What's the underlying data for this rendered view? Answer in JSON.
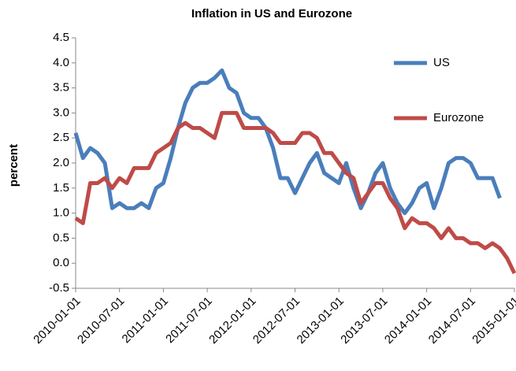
{
  "chart_data": {
    "type": "line",
    "title": "Inflation in US and Eurozone",
    "ylabel": "percent",
    "categories": [
      "2010-01-01",
      null,
      null,
      null,
      null,
      null,
      "2010-07-01",
      null,
      null,
      null,
      null,
      null,
      "2011-01-01",
      null,
      null,
      null,
      null,
      null,
      "2011-07-01",
      null,
      null,
      null,
      null,
      null,
      "2012-01-01",
      null,
      null,
      null,
      null,
      null,
      "2012-07-01",
      null,
      null,
      null,
      null,
      null,
      "2013-01-01",
      null,
      null,
      null,
      null,
      null,
      "2013-07-01",
      null,
      null,
      null,
      null,
      null,
      "2014-01-01",
      null,
      null,
      null,
      null,
      null,
      "2014-07-01",
      null,
      null,
      null,
      null,
      null,
      "2015-01-01"
    ],
    "series": [
      {
        "name": "US",
        "color": "#4a7ebb",
        "values": [
          2.6,
          2.1,
          2.3,
          2.2,
          2.0,
          1.1,
          1.2,
          1.1,
          1.1,
          1.2,
          1.1,
          1.5,
          1.6,
          2.1,
          2.7,
          3.2,
          3.5,
          3.6,
          3.6,
          3.7,
          3.85,
          3.5,
          3.4,
          3.0,
          2.9,
          2.9,
          2.7,
          2.3,
          1.7,
          1.7,
          1.4,
          1.7,
          2.0,
          2.2,
          1.8,
          1.7,
          1.6,
          2.0,
          1.5,
          1.1,
          1.4,
          1.8,
          2.0,
          1.5,
          1.2,
          1.0,
          1.2,
          1.5,
          1.6,
          1.1,
          1.5,
          2.0,
          2.1,
          2.1,
          2.0,
          1.7,
          1.7,
          1.7,
          1.3,
          null,
          null
        ]
      },
      {
        "name": "Eurozone",
        "color": "#be4b48",
        "values": [
          0.9,
          0.8,
          1.6,
          1.6,
          1.7,
          1.5,
          1.7,
          1.6,
          1.9,
          1.9,
          1.9,
          2.2,
          2.3,
          2.4,
          2.7,
          2.8,
          2.7,
          2.7,
          2.6,
          2.5,
          3.0,
          3.0,
          3.0,
          2.7,
          2.7,
          2.7,
          2.7,
          2.6,
          2.4,
          2.4,
          2.4,
          2.6,
          2.6,
          2.5,
          2.2,
          2.2,
          2.0,
          1.8,
          1.7,
          1.2,
          1.4,
          1.6,
          1.6,
          1.3,
          1.1,
          0.7,
          0.9,
          0.8,
          0.8,
          0.7,
          0.5,
          0.7,
          0.5,
          0.5,
          0.4,
          0.4,
          0.3,
          0.4,
          0.3,
          0.1,
          -0.2
        ]
      }
    ],
    "ylim": [
      -0.5,
      4.5
    ],
    "yticks": [
      -0.5,
      {
        "value": 0,
        "label": "0.0"
      },
      0.5,
      {
        "value": 1,
        "label": "1.0"
      },
      1.5,
      {
        "value": 2,
        "label": "2.0"
      },
      2.5,
      {
        "value": 3,
        "label": "3.0"
      },
      3.5,
      {
        "value": 4,
        "label": "4.0"
      },
      4.5
    ],
    "grid": false,
    "legend": "right"
  }
}
